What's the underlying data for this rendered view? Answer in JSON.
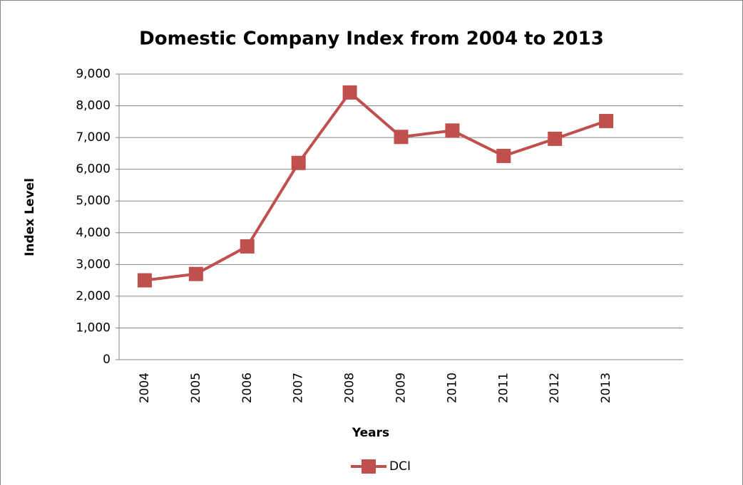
{
  "chart_data": {
    "type": "line",
    "title": "Domestic Company Index from 2004 to 2013",
    "x_label": "Years",
    "y_label": "Index Level",
    "categories": [
      "2004",
      "2005",
      "2006",
      "2007",
      "2008",
      "2009",
      "2010",
      "2011",
      "2012",
      "2013",
      null
    ],
    "series": [
      {
        "name": "DCI",
        "color": "#c0504d",
        "values": [
          2500,
          2700,
          3570,
          6200,
          8420,
          7020,
          7220,
          6420,
          6960,
          7520,
          null
        ]
      }
    ],
    "ylim": [
      0,
      9000
    ],
    "yticks": [
      0,
      {
        "value": 1000,
        "label": "1,000"
      },
      {
        "value": 2000,
        "label": "2,000"
      },
      {
        "value": 3000,
        "label": "3,000"
      },
      {
        "value": 4000,
        "label": "4,000"
      },
      {
        "value": 5000,
        "label": "5,000"
      },
      {
        "value": 6000,
        "label": "6,000"
      },
      {
        "value": 7000,
        "label": "7,000"
      },
      {
        "value": 8000,
        "label": "8,000"
      },
      {
        "value": 9000,
        "label": "9,000"
      }
    ],
    "grid": true,
    "legend": "bottom"
  }
}
